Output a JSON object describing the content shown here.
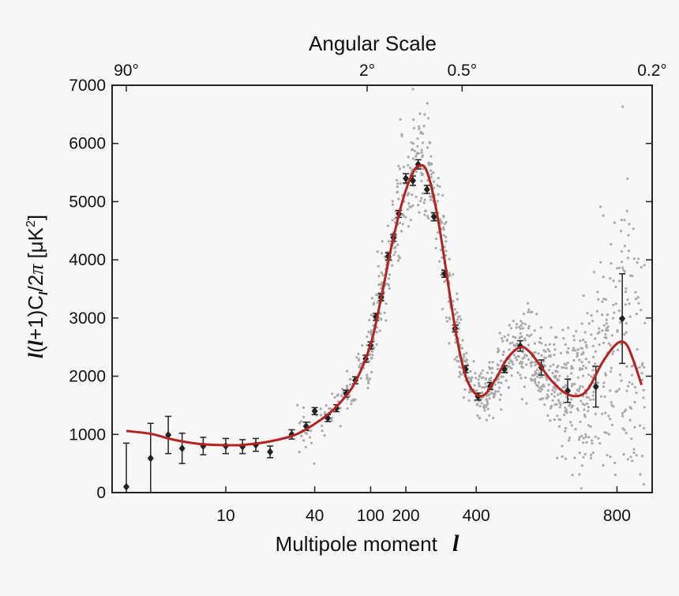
{
  "chart_data": {
    "type": "scatter",
    "title": "Angular Scale",
    "xlabel": "Multipole moment",
    "xlabel_symbol": "l",
    "ylabel": "l(l+1)C_l/2π [μK²]",
    "ylabel_parts": {
      "l1": "l",
      "open": "(",
      "l2": "l",
      "plus": "+1)C",
      "sub": "l",
      "slash": "/2",
      "pi": "π",
      "unit_open": " [μK",
      "unit_sup": "2",
      "unit_close": "]"
    },
    "xlim": [
      2,
      1000
    ],
    "ylim": [
      0,
      7000
    ],
    "x_scale": "log (low l) / linear (high l)",
    "xticks": [
      {
        "value": 10,
        "label": "10"
      },
      {
        "value": 40,
        "label": "40"
      },
      {
        "value": 100,
        "label": "100"
      },
      {
        "value": 200,
        "label": "200"
      },
      {
        "value": 400,
        "label": "400"
      },
      {
        "value": 800,
        "label": "800"
      }
    ],
    "yticks": [
      0,
      1000,
      2000,
      3000,
      4000,
      5000,
      6000,
      7000
    ],
    "top_ticks": [
      {
        "label": "90°",
        "l": 2
      },
      {
        "label": "2°",
        "l": 90
      },
      {
        "label": "0.5°",
        "l": 360
      },
      {
        "label": "0.2°",
        "l": 900
      }
    ],
    "series": [
      {
        "type": "errorbar",
        "color": "#222222",
        "points": [
          {
            "x": 2,
            "y": 100,
            "err": 750
          },
          {
            "x": 3,
            "y": 590,
            "err": 600
          },
          {
            "x": 4,
            "y": 990,
            "err": 320
          },
          {
            "x": 5,
            "y": 760,
            "err": 260
          },
          {
            "x": 7,
            "y": 800,
            "err": 150
          },
          {
            "x": 10,
            "y": 800,
            "err": 130
          },
          {
            "x": 13,
            "y": 790,
            "err": 120
          },
          {
            "x": 16,
            "y": 820,
            "err": 110
          },
          {
            "x": 20,
            "y": 700,
            "err": 100
          },
          {
            "x": 28,
            "y": 1000,
            "err": 80
          },
          {
            "x": 35,
            "y": 1140,
            "err": 70
          },
          {
            "x": 40,
            "y": 1400,
            "err": 60
          },
          {
            "x": 49,
            "y": 1280,
            "err": 60
          },
          {
            "x": 56,
            "y": 1450,
            "err": 60
          },
          {
            "x": 65,
            "y": 1700,
            "err": 60
          },
          {
            "x": 75,
            "y": 1930,
            "err": 60
          },
          {
            "x": 88,
            "y": 2300,
            "err": 60
          },
          {
            "x": 100,
            "y": 2530,
            "err": 60
          },
          {
            "x": 115,
            "y": 3020,
            "err": 60
          },
          {
            "x": 130,
            "y": 3360,
            "err": 60
          },
          {
            "x": 150,
            "y": 4060,
            "err": 60
          },
          {
            "x": 165,
            "y": 4380,
            "err": 60
          },
          {
            "x": 180,
            "y": 4790,
            "err": 60
          },
          {
            "x": 200,
            "y": 5400,
            "err": 80
          },
          {
            "x": 220,
            "y": 5360,
            "err": 80
          },
          {
            "x": 235,
            "y": 5640,
            "err": 80
          },
          {
            "x": 260,
            "y": 5210,
            "err": 70
          },
          {
            "x": 280,
            "y": 4740,
            "err": 70
          },
          {
            "x": 310,
            "y": 3760,
            "err": 60
          },
          {
            "x": 340,
            "y": 2820,
            "err": 60
          },
          {
            "x": 370,
            "y": 2120,
            "err": 60
          },
          {
            "x": 405,
            "y": 1650,
            "err": 60
          },
          {
            "x": 440,
            "y": 1830,
            "err": 60
          },
          {
            "x": 480,
            "y": 2120,
            "err": 60
          },
          {
            "x": 525,
            "y": 2520,
            "err": 90
          },
          {
            "x": 585,
            "y": 2150,
            "err": 130
          },
          {
            "x": 660,
            "y": 1750,
            "err": 200
          },
          {
            "x": 740,
            "y": 1820,
            "err": 350
          },
          {
            "x": 815,
            "y": 2990,
            "err": 770
          }
        ]
      },
      {
        "type": "line",
        "color": "#b42320",
        "points": [
          [
            2,
            1060
          ],
          [
            3,
            1010
          ],
          [
            4,
            930
          ],
          [
            5,
            880
          ],
          [
            7,
            830
          ],
          [
            10,
            815
          ],
          [
            13,
            820
          ],
          [
            20,
            880
          ],
          [
            30,
            1000
          ],
          [
            40,
            1180
          ],
          [
            50,
            1360
          ],
          [
            60,
            1560
          ],
          [
            75,
            1900
          ],
          [
            100,
            2550
          ],
          [
            130,
            3350
          ],
          [
            160,
            4250
          ],
          [
            190,
            5000
          ],
          [
            220,
            5500
          ],
          [
            240,
            5620
          ],
          [
            255,
            5580
          ],
          [
            270,
            5320
          ],
          [
            290,
            4750
          ],
          [
            310,
            4000
          ],
          [
            330,
            3200
          ],
          [
            350,
            2500
          ],
          [
            370,
            2000
          ],
          [
            390,
            1750
          ],
          [
            410,
            1660
          ],
          [
            430,
            1720
          ],
          [
            460,
            2000
          ],
          [
            490,
            2320
          ],
          [
            525,
            2500
          ],
          [
            550,
            2430
          ],
          [
            580,
            2200
          ],
          [
            610,
            1950
          ],
          [
            650,
            1720
          ],
          [
            690,
            1660
          ],
          [
            720,
            1800
          ],
          [
            760,
            2250
          ],
          [
            800,
            2560
          ],
          [
            825,
            2560
          ],
          [
            845,
            2300
          ],
          [
            870,
            1850
          ]
        ]
      },
      {
        "type": "scatter",
        "color": "#aaaaaa",
        "count": 1200
      }
    ]
  }
}
